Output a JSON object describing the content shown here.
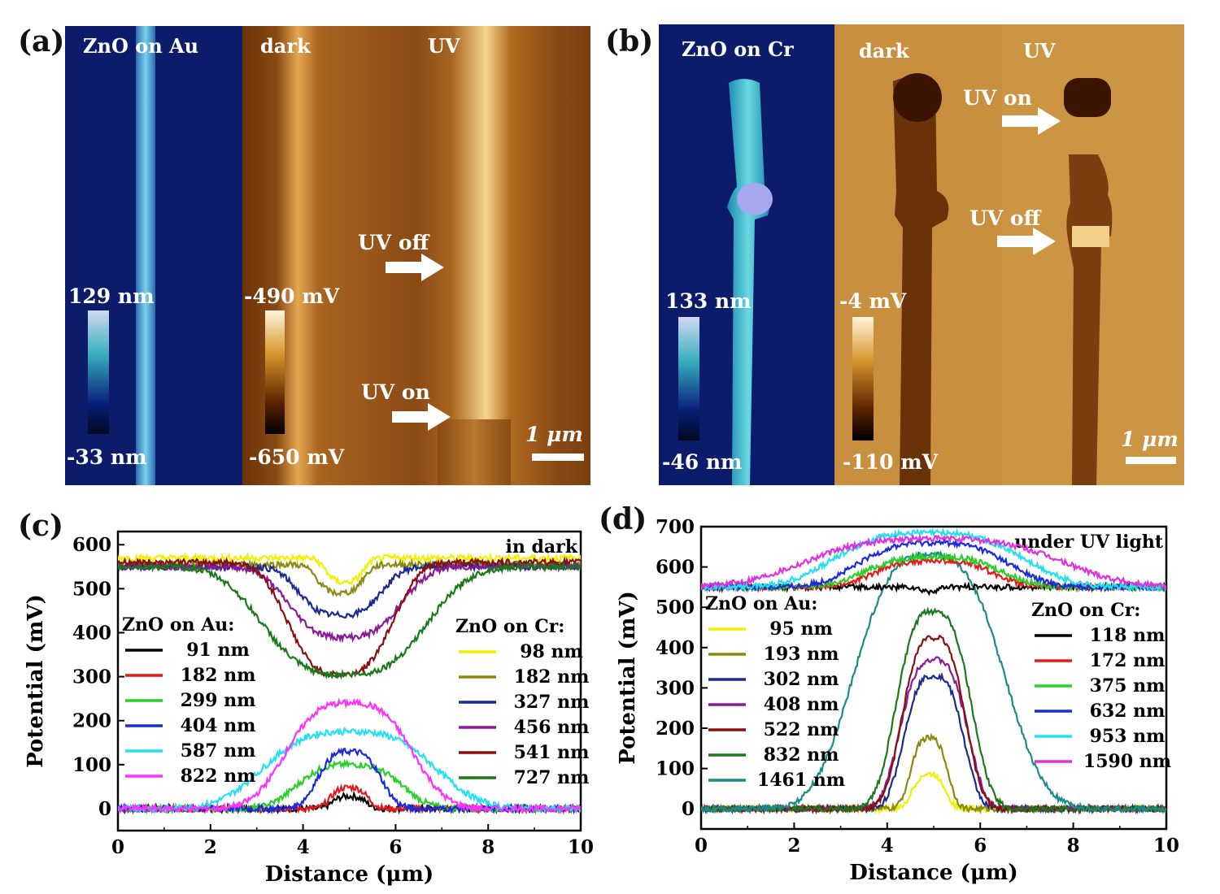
{
  "panels": {
    "a": {
      "letter": "(a)",
      "topo_title": "ZnO on Au",
      "dark_title": "dark",
      "uv_title": "UV",
      "topo_max": "129 nm",
      "topo_min": "-33 nm",
      "pot_max": "-490 mV",
      "pot_min": "-650 mV",
      "uv_off": "UV off",
      "uv_on": "UV on",
      "scale": "1 μm"
    },
    "b": {
      "letter": "(b)",
      "topo_title": "ZnO on Cr",
      "dark_title": "dark",
      "uv_title": "UV",
      "topo_max": "133 nm",
      "topo_min": "-46 nm",
      "pot_max": "-4 mV",
      "pot_min": "-110 mV",
      "uv_on": "UV on",
      "uv_off": "UV off",
      "scale": "1 μm"
    },
    "c": {
      "letter": "(c)"
    },
    "d": {
      "letter": "(d)"
    }
  },
  "colors": {
    "topo_bg": "#0c1c6a",
    "nanowire": "#5cb8d8",
    "kpfm_bg": "#b07a2c",
    "kpfm_dark": "#3a1400"
  },
  "chart_data": [
    {
      "type": "line",
      "panel": "c",
      "annotation": "in dark",
      "xlabel": "Distance (μm)",
      "ylabel": "Potential (mV)",
      "xlim": [
        0,
        10
      ],
      "ylim": [
        -50,
        630
      ],
      "xticks": [
        0,
        2,
        4,
        6,
        8,
        10
      ],
      "yticks": [
        0,
        100,
        200,
        300,
        400,
        500,
        600
      ],
      "legend_groups": [
        {
          "title": "ZnO on Au:",
          "position": "left"
        },
        {
          "title": "ZnO on Cr:",
          "position": "right"
        }
      ],
      "series": [
        {
          "group": "ZnO on Au:",
          "name": "91 nm",
          "color": "#000000",
          "base": 0,
          "peak": 28,
          "center": 5.0,
          "width": 0.45
        },
        {
          "group": "ZnO on Au:",
          "name": "182 nm",
          "color": "#e8191a",
          "base": 0,
          "peak": 48,
          "center": 5.0,
          "width": 0.5
        },
        {
          "group": "ZnO on Au:",
          "name": "299 nm",
          "color": "#2ad02a",
          "base": 0,
          "peak": 100,
          "center": 5.0,
          "width": 1.4
        },
        {
          "group": "ZnO on Au:",
          "name": "404 nm",
          "color": "#1a2ae0",
          "base": 0,
          "peak": 130,
          "center": 5.0,
          "width": 0.85
        },
        {
          "group": "ZnO on Au:",
          "name": "587 nm",
          "color": "#22e0f0",
          "base": 0,
          "peak": 175,
          "center": 5.0,
          "width": 2.3
        },
        {
          "group": "ZnO on Au:",
          "name": "822 nm",
          "color": "#ff30ff",
          "base": 0,
          "peak": 240,
          "center": 5.0,
          "width": 1.7
        },
        {
          "group": "ZnO on Cr:",
          "name": "98 nm",
          "color": "#f0f000",
          "base": 570,
          "peak": 515,
          "center": 4.9,
          "width": 0.5
        },
        {
          "group": "ZnO on Cr:",
          "name": "182 nm",
          "color": "#8a8a10",
          "base": 555,
          "peak": 490,
          "center": 4.8,
          "width": 0.6
        },
        {
          "group": "ZnO on Cr:",
          "name": "327 nm",
          "color": "#1a2a90",
          "base": 550,
          "peak": 440,
          "center": 4.8,
          "width": 1.1
        },
        {
          "group": "ZnO on Cr:",
          "name": "456 nm",
          "color": "#8a1a9a",
          "base": 550,
          "peak": 390,
          "center": 4.9,
          "width": 1.5
        },
        {
          "group": "ZnO on Cr:",
          "name": "541 nm",
          "color": "#8a1010",
          "base": 560,
          "peak": 305,
          "center": 4.8,
          "width": 1.4
        },
        {
          "group": "ZnO on Cr:",
          "name": "727 nm",
          "color": "#1a7a1a",
          "base": 550,
          "peak": 305,
          "center": 4.9,
          "width": 2.2
        }
      ]
    },
    {
      "type": "line",
      "panel": "d",
      "annotation": "under UV light",
      "xlabel": "Distance (μm)",
      "ylabel": "Potential (mV)",
      "xlim": [
        0,
        10
      ],
      "ylim": [
        -50,
        700
      ],
      "xticks": [
        0,
        2,
        4,
        6,
        8,
        10
      ],
      "yticks": [
        0,
        100,
        200,
        300,
        400,
        500,
        600,
        700
      ],
      "legend_groups": [
        {
          "title": "ZnO on Au:",
          "position": "left"
        },
        {
          "title": "ZnO on Cr:",
          "position": "right"
        }
      ],
      "series": [
        {
          "group": "ZnO on Au:",
          "name": "95 nm",
          "color": "#f0f000",
          "base": 0,
          "peak": 85,
          "center": 4.9,
          "width": 0.45
        },
        {
          "group": "ZnO on Au:",
          "name": "193 nm",
          "color": "#8a8a10",
          "base": 0,
          "peak": 175,
          "center": 4.9,
          "width": 0.5
        },
        {
          "group": "ZnO on Au:",
          "name": "302 nm",
          "color": "#1a2a90",
          "base": 0,
          "peak": 330,
          "center": 5.0,
          "width": 0.8
        },
        {
          "group": "ZnO on Au:",
          "name": "408 nm",
          "color": "#8a1a9a",
          "base": 0,
          "peak": 370,
          "center": 5.0,
          "width": 0.9
        },
        {
          "group": "ZnO on Au:",
          "name": "522 nm",
          "color": "#8a1010",
          "base": 0,
          "peak": 425,
          "center": 5.0,
          "width": 0.85
        },
        {
          "group": "ZnO on Au:",
          "name": "832 nm",
          "color": "#1a7a1a",
          "base": 0,
          "peak": 490,
          "center": 5.0,
          "width": 1.0
        },
        {
          "group": "ZnO on Au:",
          "name": "1461 nm",
          "color": "#1a8a8a",
          "base": 0,
          "peak": 630,
          "center": 4.9,
          "width": 2.0
        },
        {
          "group": "ZnO on Cr:",
          "name": "118 nm",
          "color": "#000000",
          "base": 550,
          "peak": 540,
          "center": 4.9,
          "width": 0.3
        },
        {
          "group": "ZnO on Cr:",
          "name": "172 nm",
          "color": "#e8191a",
          "base": 550,
          "peak": 615,
          "center": 5.0,
          "width": 1.6
        },
        {
          "group": "ZnO on Cr:",
          "name": "375 nm",
          "color": "#2ad02a",
          "base": 550,
          "peak": 625,
          "center": 5.0,
          "width": 1.8
        },
        {
          "group": "ZnO on Cr:",
          "name": "632 nm",
          "color": "#1a2ae0",
          "base": 550,
          "peak": 660,
          "center": 5.0,
          "width": 2.0
        },
        {
          "group": "ZnO on Cr:",
          "name": "953 nm",
          "color": "#22e0f0",
          "base": 550,
          "peak": 685,
          "center": 4.9,
          "width": 2.5
        },
        {
          "group": "ZnO on Cr:",
          "name": "1590 nm",
          "color": "#e030e0",
          "base": 550,
          "peak": 670,
          "center": 5.0,
          "width": 3.4
        }
      ]
    }
  ]
}
